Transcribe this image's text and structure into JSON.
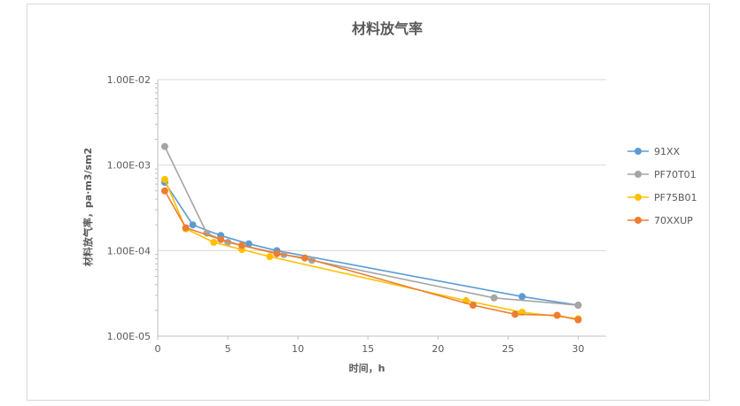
{
  "chart_data": {
    "type": "line",
    "title": "材料放气率",
    "xlabel": "时间，h",
    "ylabel": "材料放气率，pa·m3/sm2",
    "xlim": [
      0,
      32
    ],
    "ylim": [
      1e-05,
      0.01
    ],
    "y_scale": "log",
    "x_ticks": [
      0,
      5,
      10,
      15,
      20,
      25,
      30
    ],
    "x_tick_labels": [
      "0",
      "5",
      "10",
      "15",
      "20",
      "25",
      "30"
    ],
    "y_ticks": [
      1e-05,
      0.0001,
      0.001,
      0.01
    ],
    "y_tick_labels": [
      "1.00E-05",
      "1.00E-04",
      "1.00E-03",
      "1.00E-02"
    ],
    "grid": "horizontal",
    "legend": "right",
    "series": [
      {
        "name": "91XX",
        "color": "#5b9bd5",
        "x": [
          0.5,
          2.5,
          4.5,
          6.5,
          8.5,
          26,
          30
        ],
        "y": [
          0.00063,
          0.0002,
          0.00015,
          0.00012,
          0.0001,
          2.9e-05,
          2.3e-05
        ]
      },
      {
        "name": "PF70T01",
        "color": "#a5a5a5",
        "x": [
          0.5,
          3.5,
          5,
          9,
          11,
          24,
          30
        ],
        "y": [
          0.00165,
          0.00016,
          0.000125,
          9e-05,
          7.7e-05,
          2.8e-05,
          2.3e-05
        ]
      },
      {
        "name": "PF75B01",
        "color": "#ffc000",
        "x": [
          0.5,
          2,
          4,
          6,
          8,
          22,
          26,
          30
        ],
        "y": [
          0.00068,
          0.00018,
          0.000125,
          0.000103,
          8.5e-05,
          2.6e-05,
          1.9e-05,
          1.6e-05
        ]
      },
      {
        "name": "70XXUP",
        "color": "#ed7d31",
        "x": [
          0.5,
          2,
          4.5,
          6,
          8.5,
          10.5,
          22.5,
          25.5,
          28.5,
          30
        ],
        "y": [
          0.0005,
          0.000185,
          0.000135,
          0.000115,
          9.2e-05,
          8.2e-05,
          2.3e-05,
          1.8e-05,
          1.75e-05,
          1.55e-05
        ]
      }
    ]
  }
}
